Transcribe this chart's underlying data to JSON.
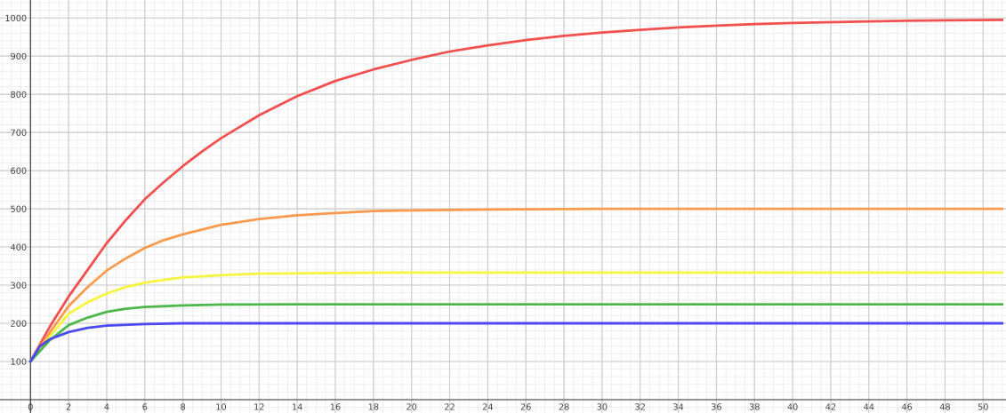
{
  "chart_data": {
    "type": "line",
    "xlim": [
      -1.6,
      51.2
    ],
    "ylim": [
      -35,
      1047
    ],
    "xticks": [
      0,
      2,
      4,
      6,
      8,
      10,
      12,
      14,
      16,
      18,
      20,
      22,
      24,
      26,
      28,
      30,
      32,
      34,
      36,
      38,
      40,
      42,
      44,
      46,
      48,
      50
    ],
    "yticks": [
      100,
      200,
      300,
      400,
      500,
      600,
      700,
      800,
      900,
      1000
    ],
    "grid": true,
    "marker": "none",
    "line_style": "solid",
    "series": [
      {
        "color": "#f2504f",
        "x": [
          0,
          1,
          2,
          3,
          4,
          5,
          6,
          7,
          8,
          9,
          10,
          12,
          14,
          16,
          18,
          20,
          22,
          24,
          26,
          28,
          30,
          32,
          34,
          36,
          38,
          40,
          44,
          48,
          51
        ],
        "values": [
          100,
          190,
          270,
          340,
          410,
          470,
          525,
          570,
          612,
          650,
          685,
          745,
          795,
          835,
          865,
          890,
          912,
          928,
          942,
          953,
          962,
          969,
          975,
          980,
          984,
          987,
          991,
          994,
          995
        ]
      },
      {
        "color": "#f99a4d",
        "x": [
          0,
          1,
          2,
          3,
          4,
          5,
          6,
          7,
          8,
          10,
          12,
          14,
          16,
          18,
          20,
          24,
          30,
          51
        ],
        "values": [
          100,
          175,
          245,
          295,
          338,
          370,
          397,
          418,
          433,
          458,
          473,
          483,
          489,
          494,
          496,
          498,
          500,
          500
        ]
      },
      {
        "color": "#f5f53f",
        "x": [
          0,
          1,
          2,
          3,
          4,
          5,
          6,
          7,
          8,
          10,
          12,
          16,
          20,
          51
        ],
        "values": [
          100,
          165,
          225,
          255,
          278,
          295,
          306,
          314,
          320,
          326,
          330,
          332,
          333,
          333
        ]
      },
      {
        "color": "#4cb84c",
        "x": [
          0,
          1,
          2,
          3,
          4,
          5,
          6,
          8,
          10,
          14,
          51
        ],
        "values": [
          100,
          155,
          195,
          215,
          230,
          238,
          243,
          247,
          249,
          250,
          250
        ]
      },
      {
        "color": "#4a4af0",
        "x": [
          0,
          0.5,
          1,
          2,
          3,
          4,
          6,
          8,
          51
        ],
        "values": [
          100,
          140,
          158,
          177,
          188,
          194,
          198,
          200,
          200
        ]
      }
    ]
  }
}
